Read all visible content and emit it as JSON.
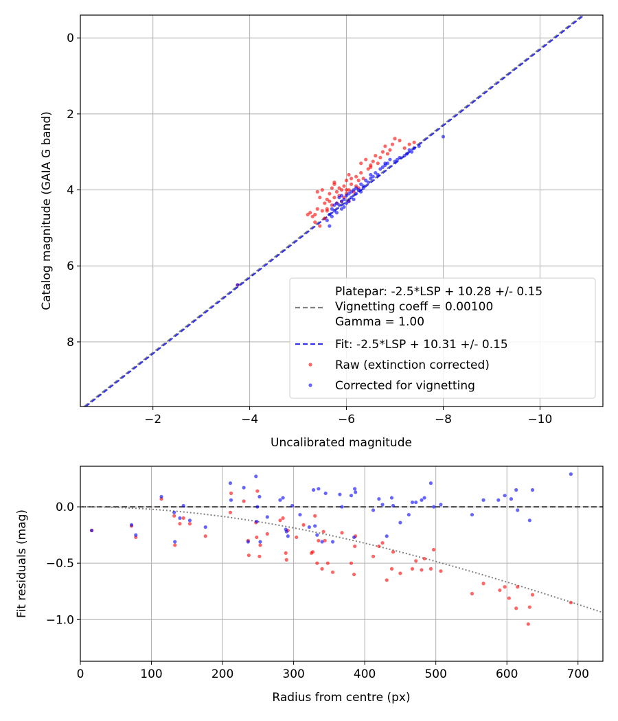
{
  "chart_data": [
    {
      "type": "scatter",
      "xlabel": "Uncalibrated magnitude",
      "ylabel": "Catalog magnitude (GAIA G band)",
      "xlim": [
        -0.5,
        -11.3
      ],
      "ylim": [
        9.7,
        -0.6
      ],
      "x_inverted": true,
      "y_inverted": true,
      "xticks": [
        -2,
        -4,
        -6,
        -8,
        -10
      ],
      "xtick_labels": [
        "−2",
        "−4",
        "−6",
        "−8",
        "−10"
      ],
      "yticks": [
        0,
        2,
        4,
        6,
        8
      ],
      "ytick_labels": [
        "0",
        "2",
        "4",
        "6",
        "8"
      ],
      "grid": true,
      "legend_position": "lower-right",
      "legend": [
        {
          "label": "Platepar: -2.5*LSP + 10.28 +/- 0.15\nVignetting coeff = 0.00100\nGamma = 1.00",
          "style": "dashed",
          "color": "#808080"
        },
        {
          "label": "Fit: -2.5*LSP + 10.31 +/- 0.15",
          "style": "dashed",
          "color": "#3333ee"
        },
        {
          "label": "Raw (extinction corrected)",
          "style": "marker",
          "color": "#ff0000"
        },
        {
          "label": "Corrected for vignetting",
          "style": "marker",
          "color": "#0000ff"
        }
      ],
      "lines": [
        {
          "name": "Platepar",
          "intercept": 10.28,
          "color": "#808080"
        },
        {
          "name": "Fit",
          "intercept": 10.31,
          "color": "#3333ee"
        }
      ],
      "series": [
        {
          "name": "Raw (extinction corrected)",
          "color": "#ff0000",
          "x": [
            -3.75,
            -5.2,
            -5.25,
            -5.3,
            -5.35,
            -5.4,
            -5.4,
            -5.45,
            -5.5,
            -5.5,
            -5.55,
            -5.55,
            -5.6,
            -5.6,
            -5.65,
            -5.65,
            -5.7,
            -5.7,
            -5.75,
            -5.75,
            -5.8,
            -5.8,
            -5.85,
            -5.85,
            -5.9,
            -5.9,
            -5.95,
            -5.95,
            -6.0,
            -6.0,
            -6.05,
            -6.05,
            -6.1,
            -6.1,
            -6.15,
            -6.2,
            -6.2,
            -6.25,
            -6.3,
            -6.3,
            -6.35,
            -6.4,
            -6.45,
            -6.5,
            -6.55,
            -6.6,
            -6.65,
            -6.7,
            -6.75,
            -6.8,
            -6.85,
            -6.9,
            -6.95,
            -7.0,
            -7.1,
            -7.2,
            -7.3,
            -7.4,
            -5.45,
            -5.75,
            -6.0,
            -6.25,
            -6.5,
            -6.05,
            -5.35,
            -5.6
          ],
          "y": [
            6.5,
            4.65,
            4.6,
            4.7,
            4.85,
            4.5,
            4.05,
            4.2,
            4.55,
            4.0,
            4.35,
            4.75,
            4.25,
            4.5,
            4.3,
            4.1,
            4.4,
            3.95,
            4.2,
            3.85,
            4.05,
            4.35,
            4.15,
            3.95,
            4.3,
            4.0,
            3.9,
            4.2,
            3.75,
            4.1,
            4.0,
            3.6,
            3.85,
            3.7,
            4.05,
            3.9,
            3.65,
            3.75,
            3.55,
            3.3,
            3.7,
            3.2,
            3.45,
            3.35,
            3.25,
            3.1,
            3.3,
            3.15,
            3.0,
            2.85,
            3.05,
            2.95,
            2.8,
            2.65,
            2.7,
            2.9,
            2.8,
            2.75,
            4.95,
            3.8,
            4.0,
            3.95,
            3.4,
            4.3,
            4.65,
            4.55
          ]
        },
        {
          "name": "Corrected for vignetting",
          "color": "#0000ff",
          "x": [
            -3.75,
            -5.6,
            -5.65,
            -5.7,
            -5.7,
            -5.75,
            -5.8,
            -5.8,
            -5.85,
            -5.85,
            -5.9,
            -5.9,
            -5.95,
            -5.95,
            -6.0,
            -6.0,
            -6.05,
            -6.1,
            -6.1,
            -6.15,
            -6.15,
            -6.2,
            -6.2,
            -6.25,
            -6.3,
            -6.3,
            -6.35,
            -6.4,
            -6.45,
            -6.5,
            -6.55,
            -6.6,
            -6.65,
            -6.7,
            -6.75,
            -6.8,
            -6.85,
            -6.9,
            -7.0,
            -7.1,
            -7.2,
            -7.25,
            -7.3,
            -7.35,
            -7.4,
            -7.5,
            -8.0,
            -5.75,
            -5.9,
            -6.05,
            -6.35,
            -6.5,
            -6.8,
            -7.05,
            -5.65
          ],
          "y": [
            6.5,
            4.8,
            4.65,
            4.7,
            4.5,
            4.55,
            4.6,
            4.35,
            4.4,
            4.2,
            4.5,
            4.3,
            4.25,
            4.45,
            4.15,
            4.35,
            4.3,
            4.05,
            4.2,
            4.25,
            4.0,
            4.1,
            3.95,
            4.0,
            3.85,
            4.05,
            3.9,
            3.75,
            3.8,
            3.7,
            3.65,
            3.55,
            3.6,
            3.45,
            3.4,
            3.35,
            3.3,
            3.2,
            3.25,
            3.15,
            3.1,
            3.05,
            2.95,
            3.0,
            2.9,
            2.85,
            2.6,
            4.4,
            4.15,
            4.1,
            3.95,
            3.6,
            3.3,
            3.2,
            4.95
          ]
        }
      ]
    },
    {
      "type": "scatter",
      "xlabel": "Radius from centre (px)",
      "ylabel": "Fit residuals (mag)",
      "xlim": [
        0,
        735
      ],
      "ylim": [
        -1.37,
        0.36
      ],
      "xticks": [
        0,
        100,
        200,
        300,
        400,
        500,
        600,
        700
      ],
      "xtick_labels": [
        "0",
        "100",
        "200",
        "300",
        "400",
        "500",
        "600",
        "700"
      ],
      "yticks": [
        0.0,
        -0.5,
        -1.0
      ],
      "ytick_labels": [
        "0.0",
        "−0.5",
        "−1.0"
      ],
      "grid": true,
      "reference_lines": [
        {
          "name": "zero line",
          "style": "dashed",
          "y": 0.0,
          "color": "#555555"
        },
        {
          "name": "vignetting model",
          "style": "dotted",
          "color": "#808080",
          "vignetting_coeff": 0.001,
          "gamma": 1.0
        }
      ],
      "series": [
        {
          "name": "Raw (extinction corrected)",
          "color": "#ff0000",
          "x": [
            16,
            72,
            78,
            114,
            132,
            133,
            140,
            145,
            154,
            176,
            211,
            212,
            230,
            236,
            237,
            247,
            248,
            249,
            252,
            253,
            263,
            281,
            285,
            289,
            290,
            292,
            304,
            314,
            325,
            327,
            330,
            333,
            335,
            340,
            342,
            344,
            348,
            355,
            368,
            381,
            385,
            386,
            387,
            412,
            420,
            425,
            431,
            438,
            440,
            450,
            467,
            472,
            480,
            484,
            493,
            497,
            507,
            551,
            567,
            590,
            597,
            603,
            613,
            615,
            630,
            632,
            636,
            690
          ],
          "y": [
            -0.21,
            -0.17,
            -0.27,
            0.07,
            -0.08,
            -0.34,
            -0.15,
            -0.1,
            -0.15,
            -0.26,
            -0.05,
            0.12,
            0.05,
            -0.3,
            -0.43,
            -0.14,
            -0.27,
            0.14,
            -0.44,
            -0.34,
            -0.24,
            -0.12,
            -0.1,
            -0.41,
            -0.47,
            -0.21,
            -0.27,
            -0.16,
            -0.41,
            -0.4,
            -0.08,
            -0.5,
            -0.3,
            -0.55,
            -0.22,
            -0.3,
            -0.5,
            -0.58,
            -0.23,
            -0.5,
            -0.6,
            -0.35,
            -0.26,
            -0.44,
            -0.35,
            -0.32,
            -0.65,
            -0.55,
            -0.4,
            -0.59,
            -0.55,
            -0.48,
            -0.56,
            -0.46,
            -0.55,
            -0.38,
            -0.57,
            -0.77,
            -0.68,
            -0.74,
            -0.71,
            -0.81,
            -0.9,
            -0.71,
            -1.04,
            -0.89,
            -0.78,
            -0.85
          ]
        },
        {
          "name": "Corrected for vignetting",
          "color": "#0000ff",
          "x": [
            16,
            72,
            78,
            114,
            132,
            133,
            140,
            145,
            154,
            176,
            211,
            212,
            230,
            236,
            247,
            248,
            249,
            252,
            253,
            263,
            281,
            285,
            289,
            290,
            292,
            298,
            309,
            322,
            328,
            330,
            333,
            335,
            340,
            345,
            355,
            365,
            368,
            381,
            385,
            386,
            387,
            412,
            420,
            425,
            431,
            438,
            440,
            450,
            462,
            467,
            472,
            480,
            484,
            493,
            497,
            507,
            551,
            567,
            588,
            597,
            606,
            613,
            615,
            632,
            636,
            690
          ],
          "y": [
            -0.21,
            -0.16,
            -0.25,
            0.09,
            -0.05,
            -0.31,
            -0.1,
            0.01,
            -0.12,
            -0.18,
            0.21,
            0.06,
            0.17,
            -0.31,
            0.27,
            -0.13,
            0.0,
            0.09,
            -0.31,
            -0.09,
            0.06,
            0.08,
            -0.2,
            -0.22,
            -0.26,
            0.01,
            -0.07,
            -0.18,
            0.15,
            -0.17,
            -0.25,
            0.16,
            -0.31,
            0.12,
            -0.31,
            0.11,
            0.0,
            0.1,
            -0.27,
            0.16,
            0.13,
            -0.03,
            0.07,
            0.02,
            -0.26,
            0.08,
            0.01,
            -0.14,
            -0.07,
            0.04,
            0.04,
            0.06,
            0.08,
            0.21,
            0.0,
            0.02,
            -0.07,
            0.06,
            0.06,
            0.1,
            0.07,
            0.15,
            -0.03,
            -0.12,
            0.15,
            0.29
          ]
        }
      ]
    }
  ]
}
